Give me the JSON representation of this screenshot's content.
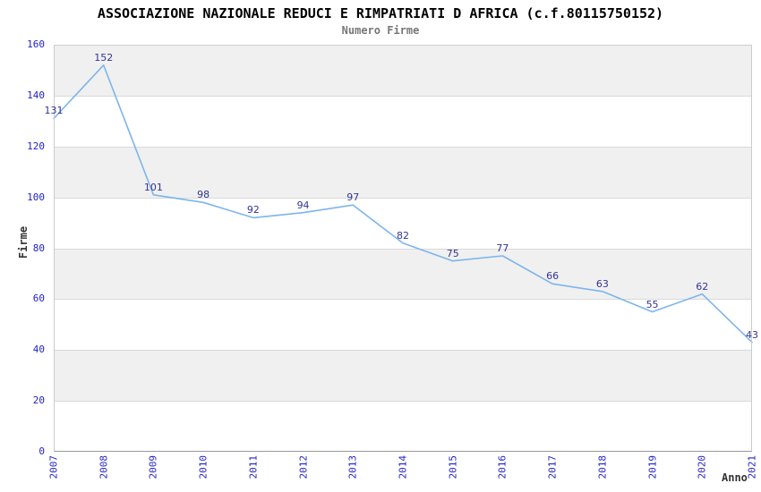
{
  "header": {
    "title": "ASSOCIAZIONE NAZIONALE REDUCI E RIMPATRIATI D AFRICA (c.f.80115750152)",
    "subtitle": "Numero Firme"
  },
  "chart_data": {
    "type": "line",
    "title": "ASSOCIAZIONE NAZIONALE REDUCI E RIMPATRIATI D AFRICA (c.f.80115750152)",
    "subtitle": "Numero Firme",
    "categories": [
      "2007",
      "2008",
      "2009",
      "2010",
      "2011",
      "2012",
      "2013",
      "2014",
      "2015",
      "2016",
      "2017",
      "2018",
      "2019",
      "2020",
      "2021"
    ],
    "values": [
      131,
      152,
      101,
      98,
      92,
      94,
      97,
      82,
      75,
      77,
      66,
      63,
      55,
      62,
      43
    ],
    "xlabel": "Anno",
    "ylabel": "Firme",
    "ylim": [
      0,
      160
    ],
    "ytick_step": 20,
    "yticks": [
      0,
      20,
      40,
      60,
      80,
      100,
      120,
      140,
      160
    ],
    "grid": "horizontal-alternating-bands",
    "legend": "none",
    "data_labels_visible": true
  },
  "colors": {
    "background": "#ffffff",
    "series_line": "#7cb5ec",
    "data_label": "#333399",
    "axis_tick_label": "#2222cc",
    "band_fill": "#f0f0f0",
    "band_alt_fill": "#ffffff",
    "gridline": "#d9d9d9",
    "plot_border": "#cccccc",
    "axis_line": "#999999",
    "title": "#000000",
    "subtitle": "#777777",
    "axis_title": "#333333"
  }
}
